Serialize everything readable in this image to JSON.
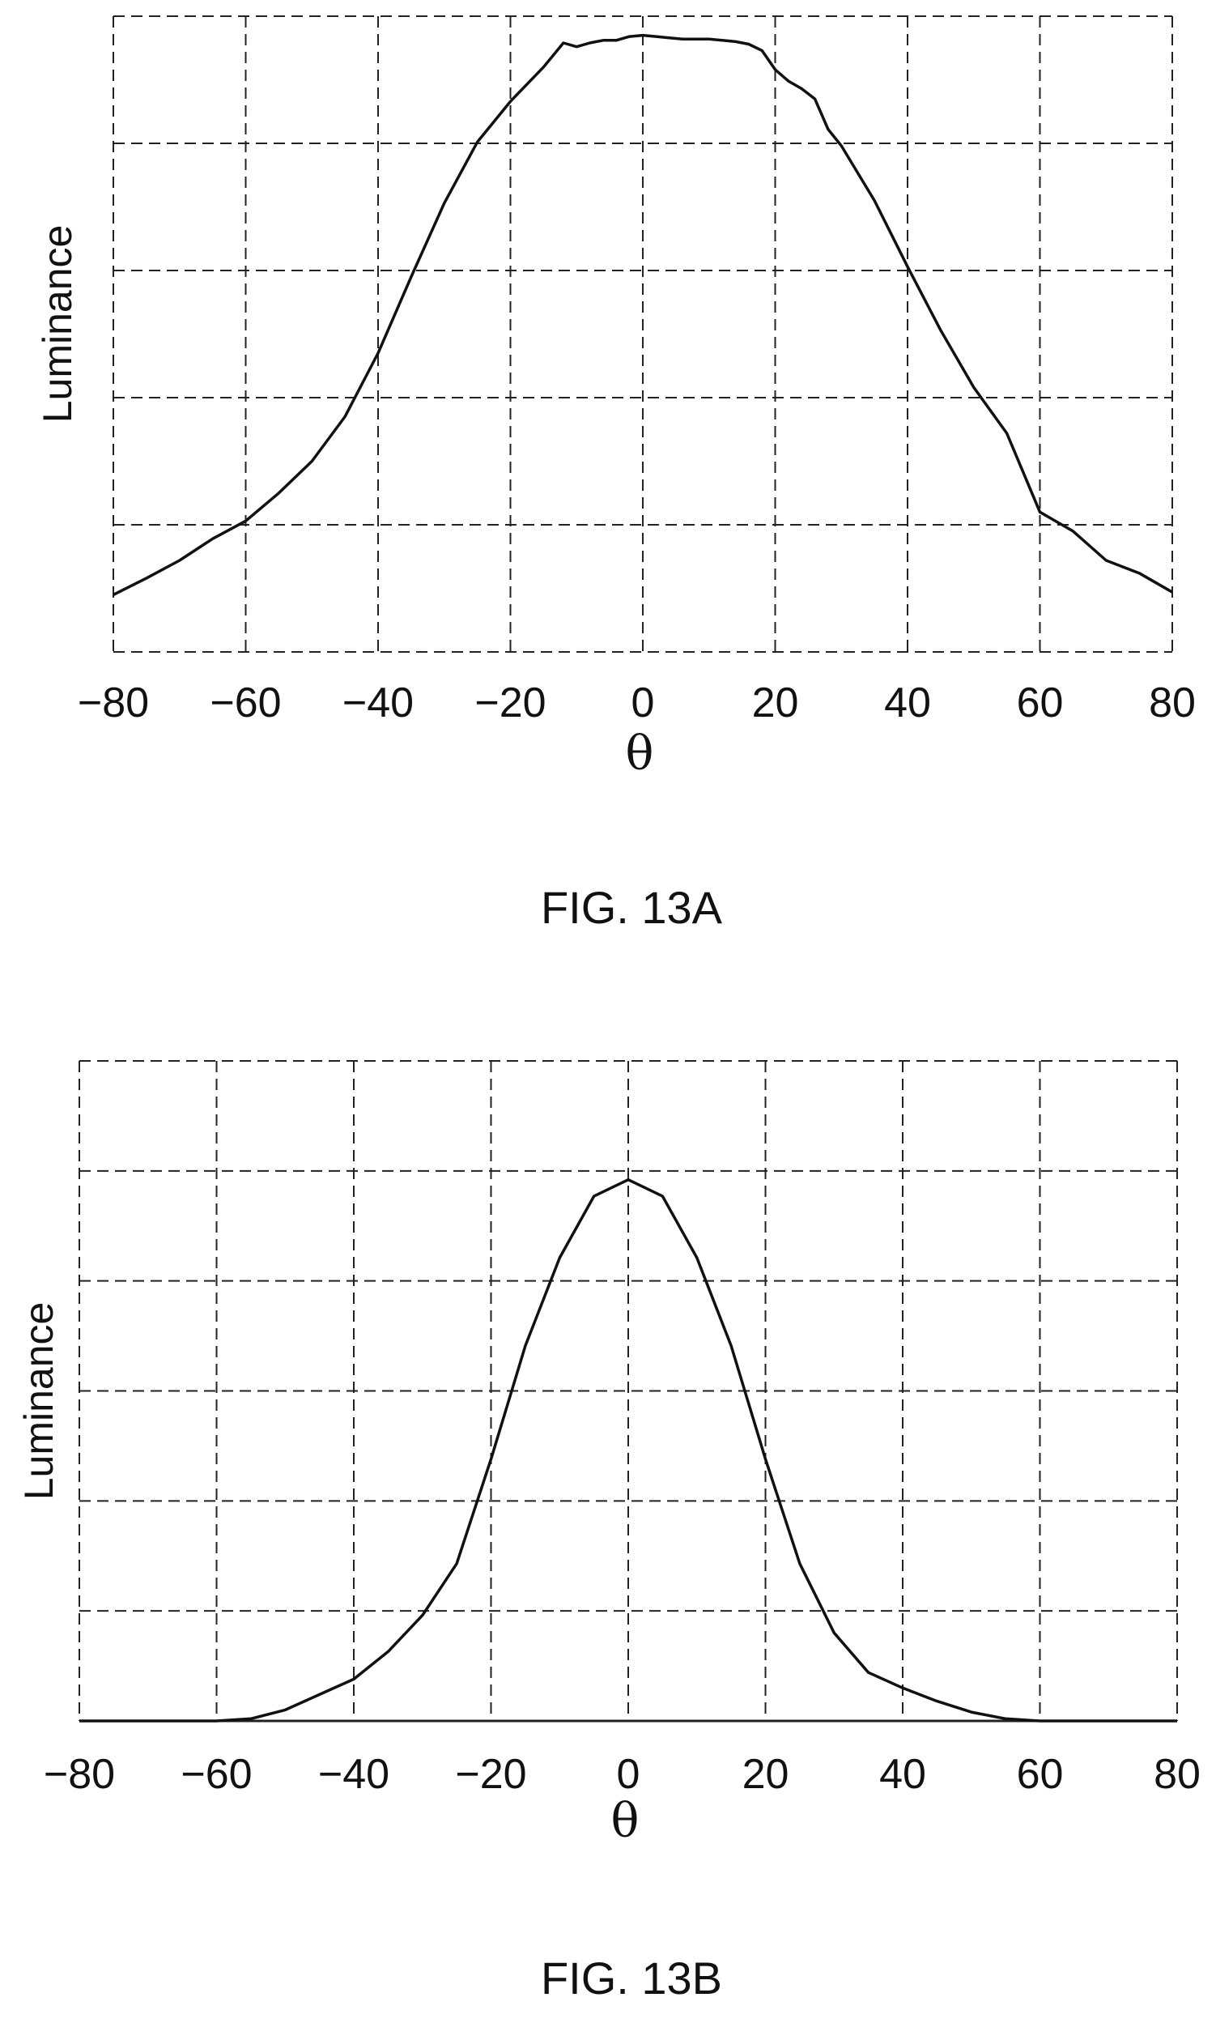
{
  "figures": [
    {
      "caption": "FIG. 13A"
    },
    {
      "caption": "FIG. 13B"
    }
  ],
  "chart_data": [
    {
      "type": "line",
      "title": "",
      "xlabel": "θ",
      "ylabel": "Luminance",
      "xlim": [
        -80,
        80
      ],
      "ylim": [
        0,
        5
      ],
      "xticks": [
        "−80",
        "−60",
        "−40",
        "−20",
        "0",
        "20",
        "40",
        "60",
        "80"
      ],
      "grid": true,
      "x": [
        -80,
        -75,
        -70,
        -65,
        -60,
        -55,
        -50,
        -45,
        -40,
        -35,
        -30,
        -25,
        -20,
        -15,
        -12,
        -10,
        -8,
        -6,
        -4,
        -2,
        0,
        2,
        4,
        6,
        8,
        10,
        12,
        14,
        16,
        18,
        20,
        22,
        24,
        26,
        28,
        30,
        35,
        40,
        45,
        50,
        55,
        60,
        65,
        70,
        75,
        80
      ],
      "series": [
        {
          "values": [
            0.45,
            0.58,
            0.72,
            0.89,
            1.03,
            1.25,
            1.5,
            1.85,
            2.35,
            2.95,
            3.53,
            4.01,
            4.33,
            4.6,
            4.79,
            4.76,
            4.79,
            4.81,
            4.81,
            4.84,
            4.85,
            4.84,
            4.83,
            4.82,
            4.82,
            4.82,
            4.81,
            4.8,
            4.78,
            4.73,
            4.58,
            4.49,
            4.43,
            4.35,
            4.11,
            3.98,
            3.55,
            3.03,
            2.53,
            2.08,
            1.72,
            1.1,
            0.95,
            0.72,
            0.62,
            0.47
          ]
        }
      ]
    },
    {
      "type": "line",
      "title": "",
      "xlabel": "θ",
      "ylabel": "Luminance",
      "xlim": [
        -80,
        80
      ],
      "ylim": [
        0,
        6
      ],
      "xticks": [
        "−80",
        "−60",
        "−40",
        "−20",
        "0",
        "20",
        "40",
        "60",
        "80"
      ],
      "grid": true,
      "x": [
        -80,
        -70,
        -60,
        -55,
        -50,
        -45,
        -40,
        -35,
        -30,
        -25,
        -20,
        -15,
        -10,
        -5,
        0,
        5,
        10,
        15,
        20,
        25,
        30,
        35,
        40,
        45,
        50,
        55,
        60,
        70,
        80
      ],
      "series": [
        {
          "values": [
            0.0,
            0.0,
            0.0,
            0.02,
            0.1,
            0.24,
            0.38,
            0.63,
            0.96,
            1.43,
            2.38,
            3.41,
            4.21,
            4.77,
            4.92,
            4.77,
            4.21,
            3.41,
            2.38,
            1.43,
            0.8,
            0.44,
            0.3,
            0.18,
            0.08,
            0.02,
            0.0,
            0.0,
            0.0
          ]
        }
      ]
    }
  ]
}
